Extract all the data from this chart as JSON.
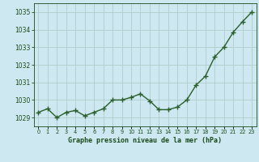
{
  "x": [
    0,
    1,
    2,
    3,
    4,
    5,
    6,
    7,
    8,
    9,
    10,
    11,
    12,
    13,
    14,
    15,
    16,
    17,
    18,
    19,
    20,
    21,
    22,
    23
  ],
  "y": [
    1029.3,
    1029.5,
    1029.0,
    1029.3,
    1029.4,
    1029.1,
    1029.3,
    1029.5,
    1030.0,
    1030.0,
    1030.15,
    1030.35,
    1029.95,
    1029.45,
    1029.45,
    1029.6,
    1030.0,
    1030.85,
    1031.35,
    1032.45,
    1033.0,
    1033.85,
    1034.45,
    1035.0
  ],
  "line_color": "#2a5e2a",
  "marker_color": "#2a5e2a",
  "bg_color": "#cde8f0",
  "grid_color": "#b0cccc",
  "xlabel": "Graphe pression niveau de la mer (hPa)",
  "xlabel_color": "#1a4a1a",
  "tick_color": "#1a4a1a",
  "ylim": [
    1028.5,
    1035.5
  ],
  "xlim": [
    -0.5,
    23.5
  ],
  "yticks": [
    1029,
    1030,
    1031,
    1032,
    1033,
    1034,
    1035
  ],
  "xticks": [
    0,
    1,
    2,
    3,
    4,
    5,
    6,
    7,
    8,
    9,
    10,
    11,
    12,
    13,
    14,
    15,
    16,
    17,
    18,
    19,
    20,
    21,
    22,
    23
  ],
  "marker_size": 2.8,
  "line_width": 1.0
}
